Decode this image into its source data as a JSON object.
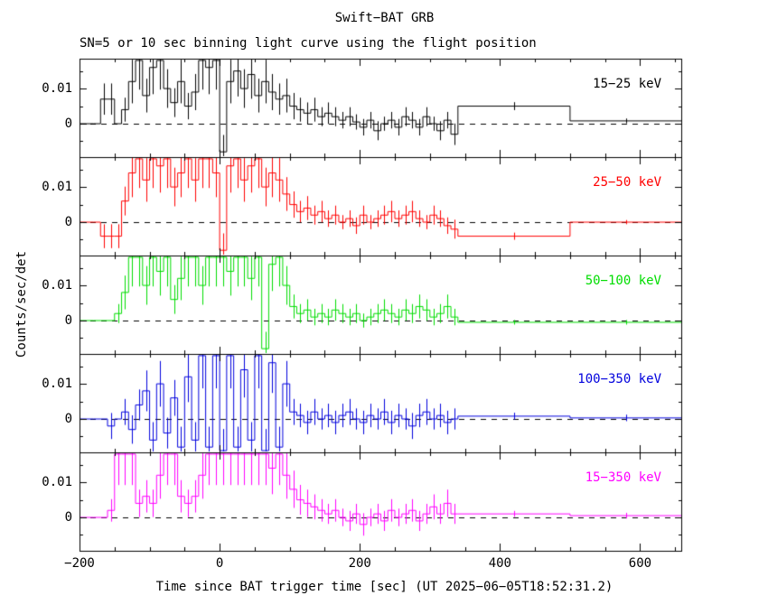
{
  "chart_data": {
    "type": "line",
    "step": true,
    "title": "Swift−BAT GRB",
    "subtitle": "SN=5 or 10 sec binning light curve using the flight position",
    "xlabel": "Time since BAT trigger time [sec] (UT 2025−06−05T18:52:31.2)",
    "ylabel": "Counts/sec/det",
    "layout": {
      "panels": "stacked-vertical",
      "shared_x": true,
      "grid": false,
      "zero_line": "dashed"
    },
    "xlim": [
      -200,
      660
    ],
    "ylim": [
      -0.0095,
      0.0185
    ],
    "xticks": {
      "values": [
        -200,
        0,
        200,
        400,
        600
      ],
      "labels": [
        "−200",
        "0",
        "200",
        "400",
        "600"
      ]
    },
    "xticks_minor_step": 50,
    "yticks": {
      "values": [
        0,
        0.01
      ],
      "labels": [
        "0",
        "0.01"
      ]
    },
    "yticks_minor": [
      -0.005,
      0.005,
      0.015
    ],
    "error_scale": 0.35,
    "t_edges": [
      -200,
      -190,
      -180,
      -170,
      -160,
      -150,
      -140,
      -130,
      -120,
      -110,
      -100,
      -90,
      -80,
      -70,
      -60,
      -50,
      -40,
      -30,
      -20,
      -10,
      0,
      10,
      20,
      30,
      40,
      50,
      60,
      70,
      80,
      90,
      100,
      110,
      120,
      130,
      140,
      150,
      160,
      170,
      180,
      190,
      200,
      210,
      220,
      230,
      240,
      250,
      260,
      270,
      280,
      290,
      300,
      310,
      320,
      330,
      340,
      500,
      660
    ],
    "series": [
      {
        "label": "15−25 keV",
        "color": "#000000",
        "err_base": 0.002,
        "values": [
          0,
          0,
          0,
          0.007,
          0.007,
          0,
          0.004,
          0.012,
          0.018,
          0.008,
          0.016,
          0.018,
          0.01,
          0.006,
          0.012,
          0.005,
          0.009,
          0.018,
          0.016,
          0.018,
          -0.008,
          0.012,
          0.015,
          0.01,
          0.014,
          0.008,
          0.012,
          0.009,
          0.007,
          0.008,
          0.005,
          0.004,
          0.003,
          0.004,
          0.002,
          0.003,
          0.002,
          0.001,
          0.002,
          0.0005,
          -0.001,
          0.001,
          -0.002,
          0.0,
          0.001,
          -0.001,
          0.002,
          0.001,
          -0.001,
          0.002,
          0.0,
          -0.002,
          0.001,
          -0.003,
          0.005,
          0.0008
        ]
      },
      {
        "label": "25−50 keV",
        "color": "#ff0000",
        "err_base": 0.002,
        "values": [
          0,
          0,
          0,
          -0.004,
          -0.004,
          -0.004,
          0.006,
          0.014,
          0.018,
          0.012,
          0.018,
          0.016,
          0.018,
          0.01,
          0.014,
          0.018,
          0.012,
          0.018,
          0.018,
          0.014,
          -0.008,
          0.016,
          0.018,
          0.012,
          0.016,
          0.018,
          0.01,
          0.014,
          0.012,
          0.008,
          0.005,
          0.003,
          0.004,
          0.002,
          0.003,
          0.001,
          0.002,
          0.0,
          0.001,
          -0.001,
          0.002,
          0.0,
          0.001,
          0.002,
          0.003,
          0.001,
          0.002,
          0.003,
          0.001,
          0.0,
          0.002,
          0.001,
          -0.001,
          -0.002,
          -0.004,
          0.0
        ]
      },
      {
        "label": "50−100 keV",
        "color": "#00dd00",
        "err_base": 0.002,
        "values": [
          0,
          0,
          0,
          0,
          0,
          0.002,
          0.008,
          0.018,
          0.018,
          0.01,
          0.018,
          0.014,
          0.018,
          0.006,
          0.012,
          0.018,
          0.018,
          0.01,
          0.018,
          0.018,
          0.018,
          0.014,
          0.018,
          0.018,
          0.012,
          0.018,
          -0.008,
          0.016,
          0.018,
          0.01,
          0.004,
          0.002,
          0.003,
          0.001,
          0.002,
          0.001,
          0.003,
          0.002,
          0.001,
          0.002,
          0.0,
          0.001,
          0.002,
          0.003,
          0.002,
          0.001,
          0.003,
          0.002,
          0.004,
          0.003,
          0.001,
          0.002,
          0.004,
          0.001,
          -0.0005,
          -0.0005
        ]
      },
      {
        "label": "100−350 keV",
        "color": "#0000dd",
        "err_base": 0.003,
        "values": [
          0,
          0,
          0,
          0,
          -0.002,
          0.0,
          0.002,
          -0.003,
          0.004,
          0.008,
          -0.006,
          0.01,
          -0.004,
          0.006,
          -0.008,
          0.012,
          -0.006,
          0.018,
          -0.008,
          0.018,
          -0.009,
          0.018,
          -0.008,
          0.014,
          -0.006,
          0.018,
          -0.009,
          0.016,
          -0.008,
          0.01,
          0.002,
          0.001,
          -0.001,
          0.002,
          0.0,
          0.001,
          -0.001,
          0.001,
          0.002,
          0.0,
          -0.001,
          0.001,
          0.0,
          0.002,
          -0.001,
          0.001,
          0.0,
          -0.002,
          0.001,
          0.002,
          0.0,
          0.001,
          -0.001,
          0.0,
          0.0008,
          0.0003
        ]
      },
      {
        "label": "15−350 keV",
        "color": "#ff00ff",
        "err_base": 0.0025,
        "values": [
          0,
          0,
          0,
          0,
          0.002,
          0.018,
          0.018,
          0.018,
          0.004,
          0.006,
          0.004,
          0.012,
          0.018,
          0.018,
          0.006,
          0.004,
          0.006,
          0.012,
          0.018,
          0.018,
          0.018,
          0.018,
          0.018,
          0.018,
          0.018,
          0.018,
          0.018,
          0.014,
          0.018,
          0.012,
          0.008,
          0.005,
          0.004,
          0.003,
          0.002,
          0.001,
          0.002,
          0.0,
          -0.001,
          0.001,
          -0.002,
          0.0,
          0.001,
          -0.001,
          0.002,
          0.0,
          0.001,
          0.002,
          -0.001,
          0.001,
          0.003,
          0.001,
          0.004,
          0.001,
          0.001,
          0.0005
        ]
      }
    ]
  }
}
